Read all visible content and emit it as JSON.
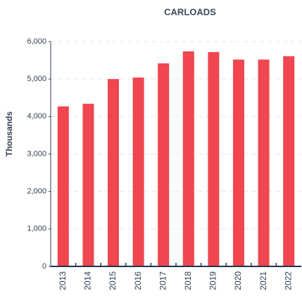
{
  "chart_data": {
    "type": "bar",
    "title": "CARLOADS",
    "y_label": "Thousands",
    "categories": [
      "2013",
      "2014",
      "2015",
      "2016",
      "2017",
      "2018",
      "2019",
      "2020",
      "2021",
      "2022"
    ],
    "values": [
      4270,
      4340,
      5000,
      5040,
      5420,
      5740,
      5720,
      5520,
      5520,
      5610
    ],
    "color": "#f0464f",
    "ylim": [
      0,
      6000
    ],
    "yticks": [
      0,
      {
        "value": 1000,
        "label": "1,000"
      },
      {
        "value": 2000,
        "label": "2,000"
      },
      {
        "value": 3000,
        "label": "3,000"
      },
      {
        "value": 4000,
        "label": "4,000"
      },
      {
        "value": 5000,
        "label": "5,000"
      },
      {
        "value": 6000,
        "label": "6,000"
      }
    ],
    "grid": true
  }
}
